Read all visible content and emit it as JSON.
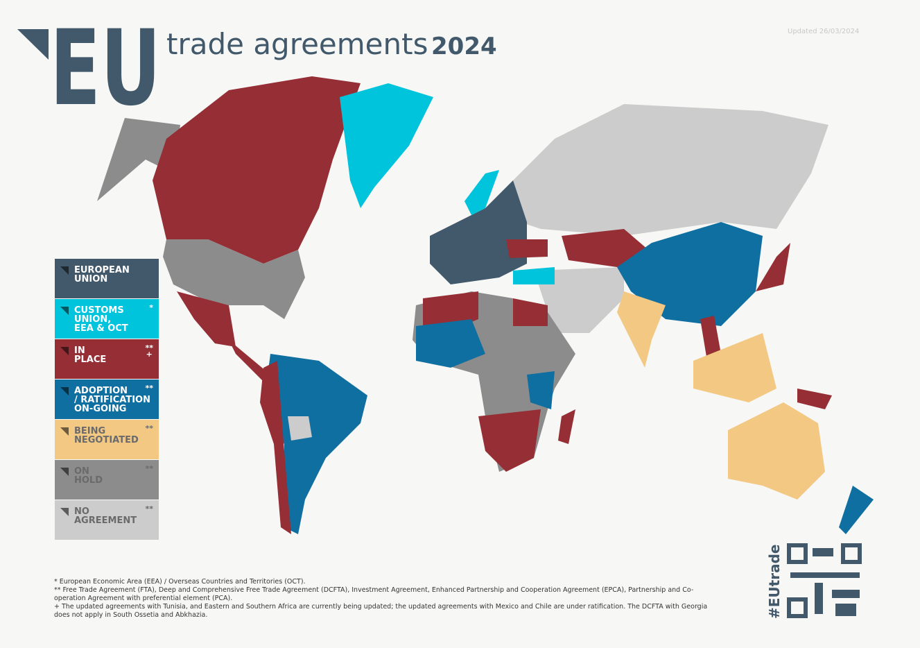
{
  "header": {
    "logo": "EU",
    "title": "trade agreements",
    "year": "2024",
    "updated": "Updated 26/03/2024"
  },
  "legend": [
    {
      "lines": [
        "EUROPEAN",
        "UNION"
      ],
      "color": "#41596b"
    },
    {
      "lines": [
        "CUSTOMS",
        "UNION,",
        "EEA & OCT"
      ],
      "marks": [
        "*"
      ],
      "color": "#00c3dc"
    },
    {
      "lines": [
        "IN",
        "PLACE"
      ],
      "marks": [
        "**",
        "+"
      ],
      "color": "#952e35"
    },
    {
      "lines": [
        "ADOPTION",
        "/ RATIFICATION",
        "ON-GOING"
      ],
      "marks": [
        "**"
      ],
      "color": "#0f6fa0"
    },
    {
      "lines": [
        "BEING",
        "NEGOTIATED"
      ],
      "marks": [
        "**"
      ],
      "color": "#f2c882"
    },
    {
      "lines": [
        "ON",
        "HOLD"
      ],
      "marks": [
        "**"
      ],
      "color": "#8c8c8c"
    },
    {
      "lines": [
        "NO",
        "AGREEMENT"
      ],
      "marks": [
        "**"
      ],
      "color": "#cccccc"
    }
  ],
  "notes": [
    "* European Economic Area (EEA) / Overseas Countries and Territories (OCT).",
    "** Free Trade Agreement (FTA), Deep and Comprehensive Free Trade Agreement (DCFTA), Investment Agreement, Enhanced Partnership and Cooperation Agreement (EPCA), Partnership and Co-operation Agreement with preferential element (PCA).",
    "+ The updated agreements with Tunisia, and Eastern and Southern Africa are currently being updated; the updated agreements with Mexico and Chile are under ratification. The DCFTA with Georgia does not apply in South Ossetia and Abkhazia."
  ],
  "tag": "#EUtrade"
}
